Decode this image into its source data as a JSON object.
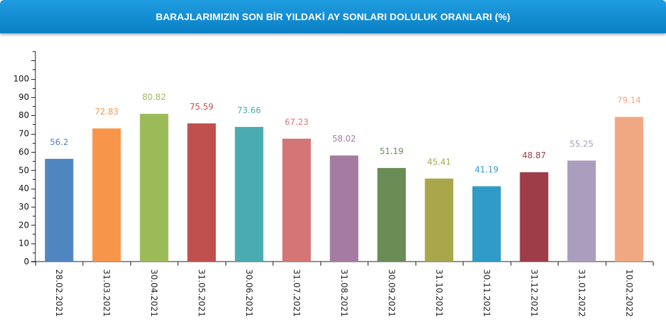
{
  "chart_data": {
    "type": "bar",
    "title": "BARAJLARIMIZIN SON BİR YILDAKİ AY SONLARI DOLULUK ORANLARI (%)",
    "xlabel": "",
    "ylabel": "",
    "ylim": [
      0,
      115
    ],
    "yticks": [
      0,
      10,
      20,
      30,
      40,
      50,
      60,
      70,
      80,
      90,
      100
    ],
    "grid": false,
    "categories": [
      "28.02.2021",
      "31.03.2021",
      "30.04.2021",
      "31.05.2021",
      "30.06.2021",
      "31.07.2021",
      "31.08.2021",
      "30.09.2021",
      "31.10.2021",
      "30.11.2021",
      "31.12.2021",
      "31.01.2022",
      "10.02.2022"
    ],
    "values": [
      56.2,
      72.83,
      80.82,
      75.59,
      73.66,
      67.23,
      58.02,
      51.19,
      45.41,
      41.19,
      48.87,
      55.25,
      79.14
    ],
    "value_labels": [
      "56.2",
      "72.83",
      "80.82",
      "75.59",
      "73.66",
      "67.23",
      "58.02",
      "51.19",
      "45.41",
      "41.19",
      "48.87",
      "55.25",
      "79.14"
    ],
    "colors": [
      "#4f86c0",
      "#f7964a",
      "#9bbb59",
      "#c0504d",
      "#4aacb0",
      "#d47676",
      "#a47ba1",
      "#6a8d56",
      "#a9a74c",
      "#2f9bc6",
      "#9e3d48",
      "#ab9dbe",
      "#f0a882"
    ]
  }
}
